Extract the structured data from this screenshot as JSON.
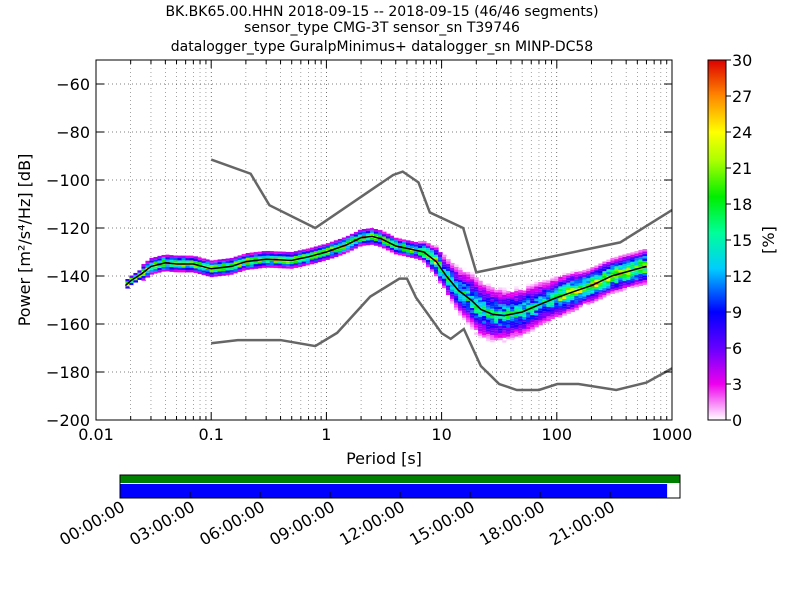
{
  "title_lines": [
    "BK.BK65.00.HHN   2018-09-15 -- 2018-09-15  (46/46 segments)",
    "sensor_type CMG-3T sensor_sn T39746",
    "datalogger_type GuralpMinimus+ datalogger_sn MINP-DC58"
  ],
  "chart_data": {
    "type": "heatmap",
    "xlabel": "Period [s]",
    "ylabel": "Power [m²/s⁴/Hz] [dB]",
    "xscale": "log",
    "xlim": [
      0.01,
      1000
    ],
    "ylim": [
      -200,
      -50
    ],
    "xticks": [
      0.01,
      0.1,
      1,
      10,
      100,
      1000
    ],
    "xtick_labels": [
      "0.01",
      "0.1",
      "1",
      "10",
      "100",
      "1000"
    ],
    "yticks": [
      -60,
      -80,
      -100,
      -120,
      -140,
      -160,
      -180,
      -200
    ],
    "ytick_labels": [
      "−60",
      "−80",
      "−100",
      "−120",
      "−140",
      "−160",
      "−180",
      "−200"
    ],
    "grid": true,
    "colorbar": {
      "label": "[%]",
      "ticks": [
        "0",
        "3",
        "6",
        "9",
        "12",
        "15",
        "18",
        "21",
        "24",
        "27",
        "30"
      ],
      "range": [
        0,
        30
      ]
    },
    "nhnm": [
      [
        0.1,
        -91.5
      ],
      [
        0.22,
        -97.4
      ],
      [
        0.32,
        -110.5
      ],
      [
        0.8,
        -120
      ],
      [
        3.8,
        -97.9
      ],
      [
        4.6,
        -96.5
      ],
      [
        6.3,
        -101
      ],
      [
        7.9,
        -113.5
      ],
      [
        15.4,
        -120
      ],
      [
        20,
        -138.5
      ],
      [
        354.8,
        -126
      ],
      [
        1000,
        -112.5
      ]
    ],
    "nlnm": [
      [
        0.1,
        -168
      ],
      [
        0.17,
        -166.7
      ],
      [
        0.4,
        -166.7
      ],
      [
        0.8,
        -169.2
      ],
      [
        1.24,
        -163.7
      ],
      [
        2.4,
        -148.6
      ],
      [
        4.3,
        -141.1
      ],
      [
        5,
        -141.1
      ],
      [
        6,
        -149
      ],
      [
        10,
        -163.8
      ],
      [
        12,
        -166.2
      ],
      [
        15.6,
        -162.1
      ],
      [
        21.9,
        -177.5
      ],
      [
        31.6,
        -185
      ],
      [
        45,
        -187.5
      ],
      [
        70,
        -187.5
      ],
      [
        101,
        -185
      ],
      [
        154,
        -185
      ],
      [
        328,
        -187.5
      ],
      [
        600,
        -184.4
      ],
      [
        1000,
        -178.5
      ]
    ],
    "mode": [
      [
        0.018,
        -144
      ],
      [
        0.02,
        -142
      ],
      [
        0.025,
        -139
      ],
      [
        0.03,
        -136
      ],
      [
        0.04,
        -134.5
      ],
      [
        0.05,
        -135
      ],
      [
        0.07,
        -135
      ],
      [
        0.1,
        -137
      ],
      [
        0.15,
        -136
      ],
      [
        0.2,
        -134
      ],
      [
        0.3,
        -133
      ],
      [
        0.5,
        -133.5
      ],
      [
        0.7,
        -132
      ],
      [
        1,
        -130
      ],
      [
        1.5,
        -127
      ],
      [
        2,
        -124
      ],
      [
        2.5,
        -123.5
      ],
      [
        3,
        -124.5
      ],
      [
        4,
        -127.5
      ],
      [
        5,
        -128.5
      ],
      [
        7,
        -130
      ],
      [
        9,
        -134
      ],
      [
        11,
        -140
      ],
      [
        14,
        -146
      ],
      [
        18,
        -150
      ],
      [
        22,
        -154
      ],
      [
        28,
        -156
      ],
      [
        35,
        -156.5
      ],
      [
        50,
        -155
      ],
      [
        70,
        -152
      ],
      [
        100,
        -149
      ],
      [
        150,
        -146
      ],
      [
        200,
        -144
      ],
      [
        300,
        -140
      ],
      [
        500,
        -137
      ],
      [
        600,
        -136
      ]
    ],
    "percent_scale_max": 30
  },
  "timeline": {
    "tick_labels": [
      "00:00:00",
      "03:00:00",
      "06:00:00",
      "09:00:00",
      "12:00:00",
      "15:00:00",
      "18:00:00",
      "21:00:00"
    ],
    "coverage_top_fraction": 1.0,
    "coverage_bottom_fraction": 0.977,
    "colors": {
      "top": "#008000",
      "bottom": "#0000ff"
    }
  },
  "colors": {
    "model_lines": "#666666",
    "mode_line": "#000000"
  }
}
